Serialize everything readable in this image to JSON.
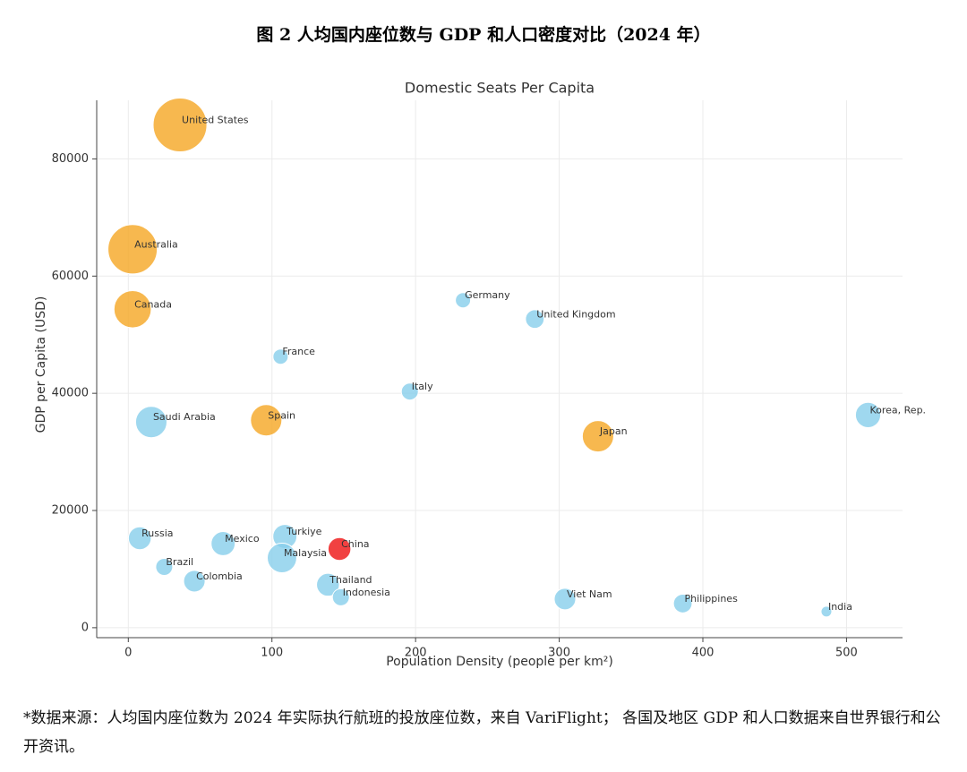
{
  "heading": "图 2 人均国内座位数与 GDP 和人口密度对比（2024 年）",
  "chart_data": {
    "type": "bubble",
    "title": "Domestic Seats Per Capita",
    "x_label": "Population Density (people per km²)",
    "y_label": "GDP per Capita (USD)",
    "xlim": [
      -22,
      539
    ],
    "ylim": [
      -1700,
      90000
    ],
    "xticks": [
      0,
      100,
      200,
      300,
      400,
      500
    ],
    "yticks": [
      0,
      20000,
      40000,
      60000,
      80000
    ],
    "grid": true,
    "labels": [
      "United States",
      "Australia",
      "Canada",
      "Saudi Arabia",
      "Spain",
      "Japan",
      "Korea, Rep.",
      "Germany",
      "United Kingdom",
      "France",
      "Italy",
      "Russia",
      "Mexico",
      "Turkiye",
      "Malaysia",
      "China",
      "Brazil",
      "Colombia",
      "Thailand",
      "Indonesia",
      "Viet Nam",
      "Philippines",
      "India"
    ],
    "x": [
      36,
      3,
      3,
      16,
      96,
      327,
      515,
      233,
      283,
      106,
      196,
      8,
      66,
      109,
      107,
      147,
      25,
      46,
      139,
      148,
      304,
      386,
      486
    ],
    "values": [
      85800,
      64580,
      54350,
      35100,
      35400,
      32670,
      36300,
      55880,
      52670,
      46260,
      40300,
      15270,
      14350,
      15570,
      11900,
      13430,
      10380,
      7940,
      7330,
      5190,
      4890,
      4120,
      2750
    ],
    "sizes": [
      2.5,
      2.1,
      1.2,
      0.85,
      0.85,
      0.85,
      0.55,
      0.2,
      0.3,
      0.2,
      0.25,
      0.45,
      0.5,
      0.5,
      0.75,
      0.45,
      0.25,
      0.4,
      0.45,
      0.25,
      0.4,
      0.3,
      0.1
    ],
    "colors": [
      "#f5a623",
      "#f5a623",
      "#f5a623",
      "#87ceeb",
      "#f5a623",
      "#f5a623",
      "#87ceeb",
      "#87ceeb",
      "#87ceeb",
      "#87ceeb",
      "#87ceeb",
      "#87ceeb",
      "#87ceeb",
      "#87ceeb",
      "#87ceeb",
      "#ee1111",
      "#87ceeb",
      "#87ceeb",
      "#87ceeb",
      "#87ceeb",
      "#87ceeb",
      "#87ceeb",
      "#87ceeb"
    ]
  },
  "footnote": "*数据来源：人均国内座位数为 2024 年实际执行航班的投放座位数，来自 VariFlight； 各国及地区 GDP 和人口数据来自世界银行和公开资讯。"
}
